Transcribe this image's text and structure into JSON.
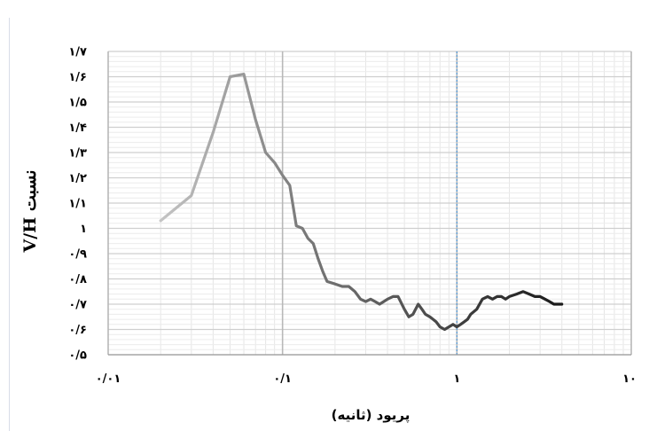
{
  "chart_data": {
    "type": "line",
    "title": "",
    "xlabel": "پریود (ثانیه)",
    "ylabel": "نسبت V/H",
    "xscale": "log",
    "xlim": [
      0.01,
      10
    ],
    "ylim": [
      0.5,
      1.7
    ],
    "x_tick_values": [
      0.01,
      0.1,
      1,
      10
    ],
    "x_tick_labels": [
      "۰/۰۱",
      "۰/۱",
      "۱",
      "۱۰"
    ],
    "y_tick_values": [
      0.5,
      0.6,
      0.7,
      0.8,
      0.9,
      1.0,
      1.1,
      1.2,
      1.3,
      1.4,
      1.5,
      1.6,
      1.7
    ],
    "y_tick_labels": [
      "۰/۵",
      "۰/۶",
      "۰/۷",
      "۰/۸",
      "۰/۹",
      "۱",
      "۱/۱",
      "۱/۲",
      "۱/۳",
      "۱/۴",
      "۱/۵",
      "۱/۶",
      "۱/۷"
    ],
    "grid": true,
    "legend": "none",
    "highlight_vertical_line_x": 1,
    "series": [
      {
        "color_start": "#c4c4c4",
        "color_end": "#1a1a1a",
        "x": [
          0.02,
          0.03,
          0.04,
          0.05,
          0.06,
          0.07,
          0.08,
          0.09,
          0.1,
          0.11,
          0.12,
          0.13,
          0.14,
          0.15,
          0.16,
          0.17,
          0.18,
          0.2,
          0.22,
          0.24,
          0.26,
          0.28,
          0.3,
          0.32,
          0.34,
          0.36,
          0.38,
          0.4,
          0.43,
          0.46,
          0.5,
          0.53,
          0.56,
          0.6,
          0.63,
          0.66,
          0.7,
          0.73,
          0.76,
          0.8,
          0.85,
          0.9,
          0.95,
          1.0,
          1.05,
          1.1,
          1.15,
          1.2,
          1.3,
          1.4,
          1.5,
          1.6,
          1.7,
          1.8,
          1.9,
          2.0,
          2.2,
          2.4,
          2.6,
          2.8,
          3.0,
          3.2,
          3.4,
          3.6,
          3.8,
          4.0
        ],
        "values": [
          1.03,
          1.13,
          1.38,
          1.6,
          1.61,
          1.43,
          1.3,
          1.26,
          1.21,
          1.17,
          1.01,
          1.0,
          0.96,
          0.94,
          0.88,
          0.83,
          0.79,
          0.78,
          0.77,
          0.77,
          0.75,
          0.72,
          0.71,
          0.72,
          0.71,
          0.7,
          0.71,
          0.72,
          0.73,
          0.73,
          0.68,
          0.65,
          0.66,
          0.7,
          0.68,
          0.66,
          0.65,
          0.64,
          0.63,
          0.61,
          0.6,
          0.61,
          0.62,
          0.61,
          0.62,
          0.63,
          0.64,
          0.66,
          0.68,
          0.72,
          0.73,
          0.72,
          0.73,
          0.73,
          0.72,
          0.73,
          0.74,
          0.75,
          0.74,
          0.73,
          0.73,
          0.72,
          0.71,
          0.7,
          0.7,
          0.7
        ]
      }
    ]
  }
}
